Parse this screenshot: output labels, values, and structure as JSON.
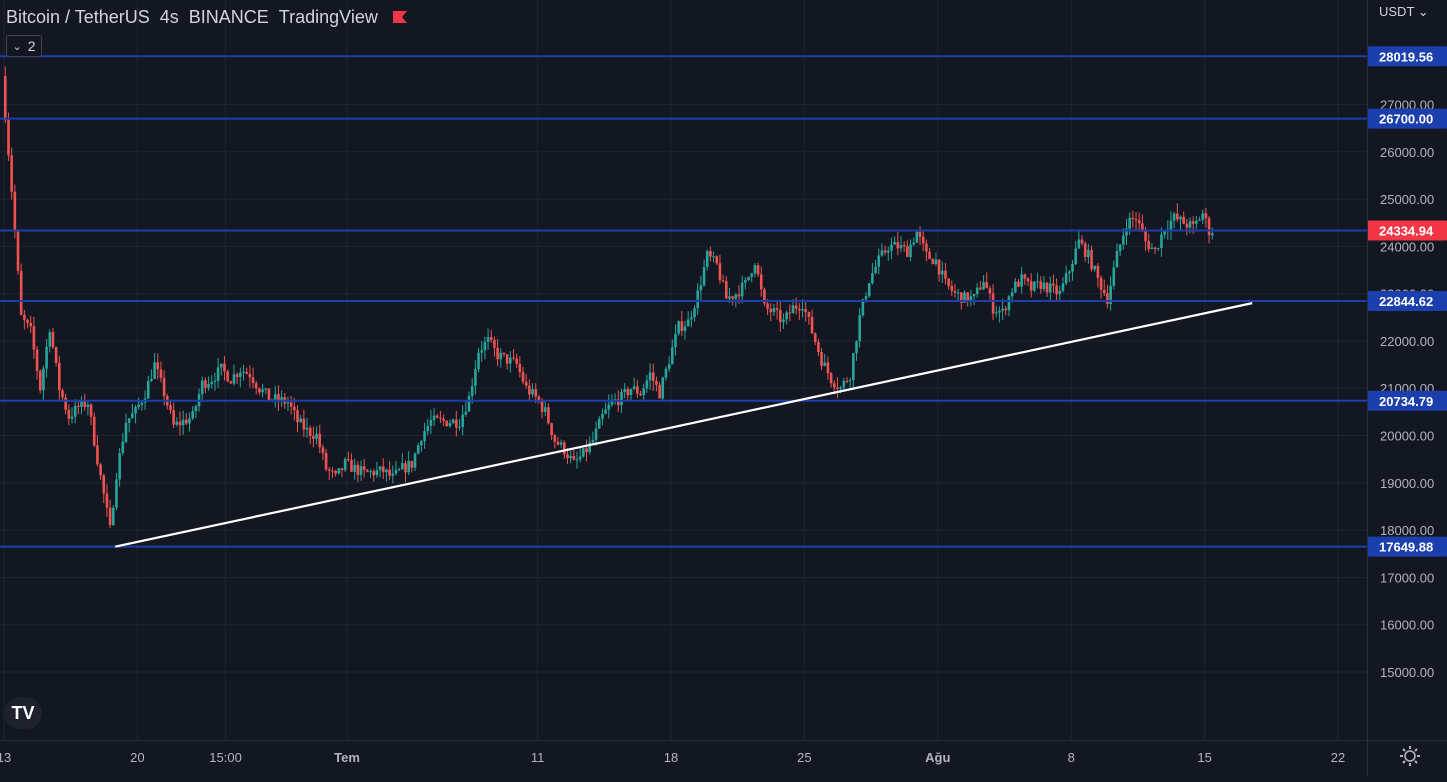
{
  "header": {
    "symbol": "Bitcoin / TetherUS",
    "interval": "4s",
    "exchange": "BINANCE",
    "source": "TradingView"
  },
  "indicators_button": {
    "count": "2"
  },
  "currency_menu": "USDT",
  "colors": {
    "background": "#131722",
    "grid": "#1f2433",
    "up": "#26a69a",
    "down": "#ef5350",
    "level_line": "#1c3fae",
    "level_label_bg": "#1c3fae",
    "price_label_bg": "#f23645",
    "trendline": "#ffffff"
  },
  "chart_data": {
    "type": "candlestick",
    "title": "Bitcoin / TetherUS",
    "y_ticks": [
      "27000.00",
      "26000.00",
      "25000.00",
      "24000.00",
      "23000.00",
      "22000.00",
      "21000.00",
      "20000.00",
      "19000.00",
      "18000.00",
      "17000.00",
      "16000.00",
      "15000.00"
    ],
    "ylim": [
      14000,
      28500
    ],
    "x_ticks": [
      {
        "label": "13",
        "date": "2022-06-13"
      },
      {
        "label": "20",
        "date": "2022-06-20"
      },
      {
        "label": "15:00",
        "date": "2022-06-24T15:00"
      },
      {
        "label": "Tem",
        "date": "2022-07-01"
      },
      {
        "label": "11",
        "date": "2022-07-11"
      },
      {
        "label": "18",
        "date": "2022-07-18"
      },
      {
        "label": "25",
        "date": "2022-07-25"
      },
      {
        "label": "Ağu",
        "date": "2022-08-01"
      },
      {
        "label": "8",
        "date": "2022-08-08"
      },
      {
        "label": "15",
        "date": "2022-08-15"
      },
      {
        "label": "22",
        "date": "2022-08-22"
      }
    ],
    "horizontal_levels": [
      28019.56,
      26700.0,
      24334.94,
      22844.62,
      20734.79,
      17649.88
    ],
    "current_price": "24334.94",
    "trendline": {
      "start": [
        "2022-06-18T20:00",
        17649.88
      ],
      "end": [
        "2022-08-17T12:00",
        22800
      ]
    },
    "price_path": [
      [
        "2022-06-13",
        27600
      ],
      [
        "2022-06-13T12:00",
        25200
      ],
      [
        "2022-06-14",
        22500
      ],
      [
        "2022-06-14T12:00",
        22200
      ],
      [
        "2022-06-15",
        21000
      ],
      [
        "2022-06-15T12:00",
        22300
      ],
      [
        "2022-06-16",
        21000
      ],
      [
        "2022-06-16T12:00",
        20400
      ],
      [
        "2022-06-17",
        20600
      ],
      [
        "2022-06-17T12:00",
        20700
      ],
      [
        "2022-06-18",
        19500
      ],
      [
        "2022-06-18T16:00",
        18000
      ],
      [
        "2022-06-19",
        19200
      ],
      [
        "2022-06-19T12:00",
        20300
      ],
      [
        "2022-06-20",
        20500
      ],
      [
        "2022-06-20T12:00",
        20900
      ],
      [
        "2022-06-21",
        21500
      ],
      [
        "2022-06-21T12:00",
        20900
      ],
      [
        "2022-06-22",
        20200
      ],
      [
        "2022-06-23",
        20400
      ],
      [
        "2022-06-23T12:00",
        21100
      ],
      [
        "2022-06-24",
        21200
      ],
      [
        "2022-06-24T12:00",
        21400
      ],
      [
        "2022-06-25",
        21200
      ],
      [
        "2022-06-25T12:00",
        21400
      ],
      [
        "2022-06-26",
        21300
      ],
      [
        "2022-06-26T12:00",
        21000
      ],
      [
        "2022-06-27",
        20800
      ],
      [
        "2022-06-28",
        20700
      ],
      [
        "2022-06-28T12:00",
        20300
      ],
      [
        "2022-06-29",
        20100
      ],
      [
        "2022-06-29T12:00",
        20000
      ],
      [
        "2022-06-30",
        19300
      ],
      [
        "2022-06-30T12:00",
        19100
      ],
      [
        "2022-07-01",
        19400
      ],
      [
        "2022-07-01T12:00",
        19300
      ],
      [
        "2022-07-02",
        19200
      ],
      [
        "2022-07-03",
        19250
      ],
      [
        "2022-07-03T12:00",
        19100
      ],
      [
        "2022-07-04",
        19300
      ],
      [
        "2022-07-04T12:00",
        19400
      ],
      [
        "2022-07-05",
        20000
      ],
      [
        "2022-07-05T12:00",
        20300
      ],
      [
        "2022-07-06",
        20300
      ],
      [
        "2022-07-07",
        20300
      ],
      [
        "2022-07-07T12:00",
        20800
      ],
      [
        "2022-07-08",
        21800
      ],
      [
        "2022-07-08T12:00",
        22000
      ],
      [
        "2022-07-09",
        21700
      ],
      [
        "2022-07-09T12:00",
        21600
      ],
      [
        "2022-07-10",
        21500
      ],
      [
        "2022-07-10T12:00",
        21000
      ],
      [
        "2022-07-11",
        20800
      ],
      [
        "2022-07-11T12:00",
        20500
      ],
      [
        "2022-07-12",
        19900
      ],
      [
        "2022-07-12T12:00",
        19700
      ],
      [
        "2022-07-13",
        19400
      ],
      [
        "2022-07-13T12:00",
        19600
      ],
      [
        "2022-07-14",
        19900
      ],
      [
        "2022-07-14T12:00",
        20400
      ],
      [
        "2022-07-15",
        20700
      ],
      [
        "2022-07-15T12:00",
        20800
      ],
      [
        "2022-07-16",
        21000
      ],
      [
        "2022-07-16T12:00",
        20900
      ],
      [
        "2022-07-17",
        21300
      ],
      [
        "2022-07-17T12:00",
        20900
      ],
      [
        "2022-07-18",
        21600
      ],
      [
        "2022-07-18T12:00",
        22300
      ],
      [
        "2022-07-19",
        22400
      ],
      [
        "2022-07-19T12:00",
        23000
      ],
      [
        "2022-07-20",
        23800
      ],
      [
        "2022-07-20T12:00",
        23600
      ],
      [
        "2022-07-21",
        22900
      ],
      [
        "2022-07-21T12:00",
        23000
      ],
      [
        "2022-07-22",
        23200
      ],
      [
        "2022-07-22T12:00",
        23700
      ],
      [
        "2022-07-23",
        22700
      ],
      [
        "2022-07-23T12:00",
        22600
      ],
      [
        "2022-07-24",
        22400
      ],
      [
        "2022-07-24T12:00",
        22700
      ],
      [
        "2022-07-25",
        22800
      ],
      [
        "2022-07-25T12:00",
        22200
      ],
      [
        "2022-07-26",
        21600
      ],
      [
        "2022-07-26T12:00",
        21200
      ],
      [
        "2022-07-27",
        21000
      ],
      [
        "2022-07-27T12:00",
        21300
      ],
      [
        "2022-07-28",
        22500
      ],
      [
        "2022-07-28T12:00",
        23300
      ],
      [
        "2022-07-29",
        23700
      ],
      [
        "2022-07-29T12:00",
        24000
      ],
      [
        "2022-07-30",
        24000
      ],
      [
        "2022-07-30T12:00",
        23900
      ],
      [
        "2022-07-31",
        24300
      ],
      [
        "2022-07-31T12:00",
        23800
      ],
      [
        "2022-08-01",
        23700
      ],
      [
        "2022-08-01T12:00",
        23200
      ],
      [
        "2022-08-02",
        23000
      ],
      [
        "2022-08-02T12:00",
        22900
      ],
      [
        "2022-08-03",
        22900
      ],
      [
        "2022-08-03T12:00",
        23300
      ],
      [
        "2022-08-04",
        22700
      ],
      [
        "2022-08-04T12:00",
        22600
      ],
      [
        "2022-08-05",
        23100
      ],
      [
        "2022-08-05T12:00",
        23300
      ],
      [
        "2022-08-06",
        23100
      ],
      [
        "2022-08-06T12:00",
        23200
      ],
      [
        "2022-08-07",
        23100
      ],
      [
        "2022-08-07T12:00",
        23000
      ],
      [
        "2022-08-08",
        23500
      ],
      [
        "2022-08-08T12:00",
        24100
      ],
      [
        "2022-08-09",
        23800
      ],
      [
        "2022-08-09T12:00",
        23300
      ],
      [
        "2022-08-10",
        22900
      ],
      [
        "2022-08-10T12:00",
        23800
      ],
      [
        "2022-08-11",
        24500
      ],
      [
        "2022-08-11T12:00",
        24600
      ],
      [
        "2022-08-12",
        24100
      ],
      [
        "2022-08-12T12:00",
        23900
      ],
      [
        "2022-08-13",
        24400
      ],
      [
        "2022-08-13T12:00",
        24600
      ],
      [
        "2022-08-14",
        24500
      ],
      [
        "2022-08-14T12:00",
        24400
      ],
      [
        "2022-08-15",
        24700
      ],
      [
        "2022-08-15T08:00",
        24334.94
      ]
    ]
  }
}
